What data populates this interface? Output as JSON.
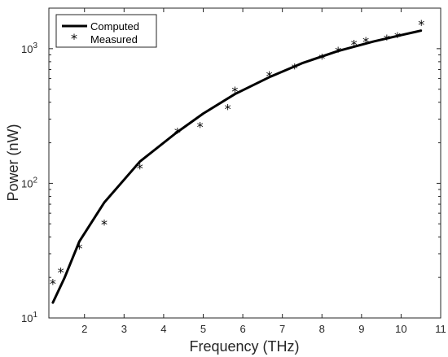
{
  "chart_data": {
    "type": "line",
    "xlabel": "Frequency (THz)",
    "ylabel": "Power (nW)",
    "xlim": [
      1.1,
      11
    ],
    "ylim": [
      10,
      2000
    ],
    "yscale": "log",
    "grid": false,
    "legend_placement": "top-left",
    "x_ticks": [
      2,
      3,
      4,
      5,
      6,
      7,
      8,
      9,
      10,
      11
    ],
    "x_tick_labels": [
      "2",
      "3",
      "4",
      "5",
      "6",
      "7",
      "8",
      "9",
      "10",
      "11"
    ],
    "y_ticks": [
      {
        "value": 10,
        "base": "10",
        "exp": "1"
      },
      {
        "value": 100,
        "base": "10",
        "exp": "2"
      },
      {
        "value": 1000,
        "base": "10",
        "exp": "3"
      }
    ],
    "series": [
      {
        "name": "Computed",
        "style": "line",
        "color": "#000000",
        "x": [
          1.2,
          1.5,
          1.87,
          2.5,
          3.4,
          4.3,
          5.0,
          5.8,
          6.7,
          7.5,
          8.4,
          9.3,
          10.0,
          10.5
        ],
        "y": [
          13,
          20,
          37,
          72,
          145,
          235,
          330,
          460,
          620,
          780,
          960,
          1130,
          1260,
          1360
        ]
      },
      {
        "name": "Measured",
        "style": "marker",
        "marker": "*",
        "color": "#000000",
        "x": [
          1.2,
          1.4,
          1.87,
          2.5,
          3.4,
          4.35,
          4.92,
          5.62,
          5.8,
          6.67,
          7.31,
          8.0,
          8.41,
          8.81,
          9.11,
          9.64,
          9.91,
          10.51
        ],
        "y": [
          18,
          22,
          33,
          50,
          130,
          240,
          265,
          360,
          485,
          630,
          720,
          850,
          960,
          1080,
          1130,
          1180,
          1230,
          1510
        ]
      }
    ]
  }
}
